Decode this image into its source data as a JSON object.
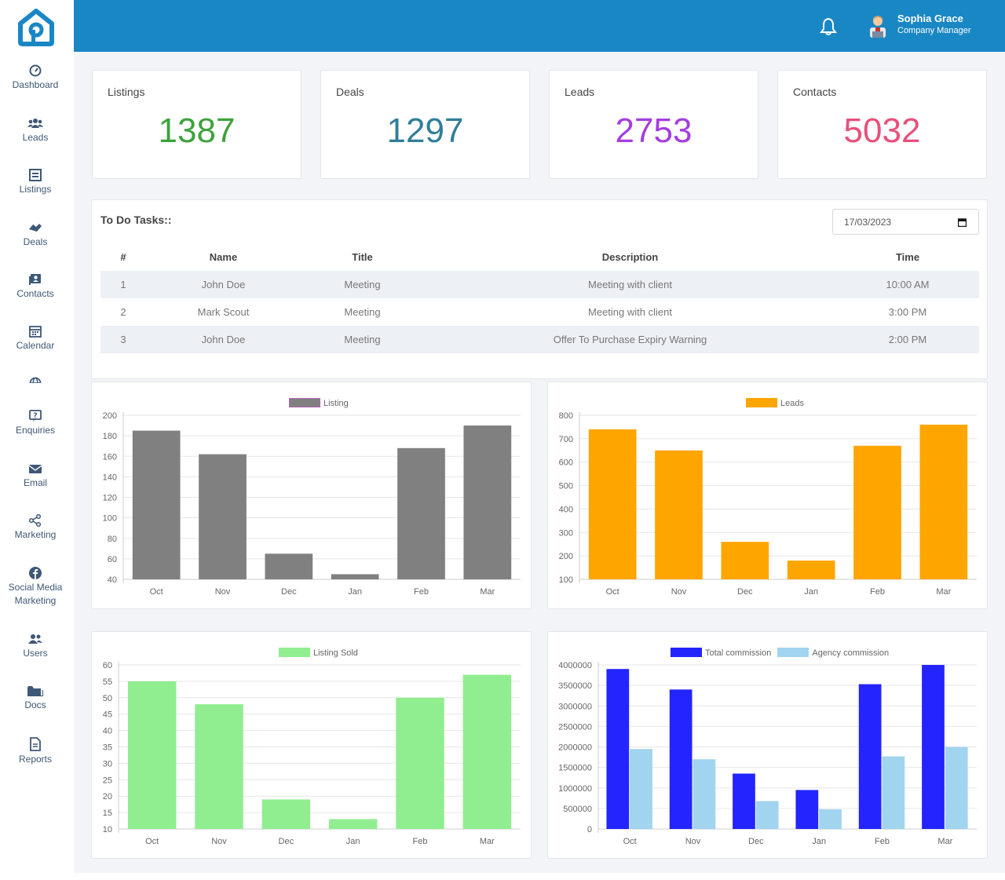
{
  "sidebar": {
    "items": [
      {
        "label": "Dashboard",
        "icon": "dashboard-icon"
      },
      {
        "label": "Leads",
        "icon": "users-icon"
      },
      {
        "label": "Listings",
        "icon": "list-icon"
      },
      {
        "label": "Deals",
        "icon": "handshake-icon"
      },
      {
        "label": "Contacts",
        "icon": "contact-card-icon"
      },
      {
        "label": "Calendar",
        "icon": "calendar-icon"
      },
      {
        "label": "Enquiries",
        "icon": "question-icon"
      },
      {
        "label": "Email",
        "icon": "mail-icon"
      },
      {
        "label": "Marketing",
        "icon": "share-icon"
      },
      {
        "label": "Social Media Marketing",
        "icon": "facebook-icon"
      },
      {
        "label": "Users",
        "icon": "user-group-icon"
      },
      {
        "label": "Docs",
        "icon": "folder-icon"
      },
      {
        "label": "Reports",
        "icon": "file-icon"
      }
    ]
  },
  "header": {
    "user_name": "Sophia Grace",
    "user_role": "Company Manager"
  },
  "stats": [
    {
      "title": "Listings",
      "value": "1387",
      "color": "#3ea23e"
    },
    {
      "title": "Deals",
      "value": "1297",
      "color": "#2f7e9a"
    },
    {
      "title": "Leads",
      "value": "2753",
      "color": "#a43ee0"
    },
    {
      "title": "Contacts",
      "value": "5032",
      "color": "#e8507a"
    }
  ],
  "tasks": {
    "title": "To Do Tasks::",
    "date": "17/03/2023",
    "columns": [
      "#",
      "Name",
      "Title",
      "Description",
      "Time"
    ],
    "rows": [
      [
        "1",
        "John Doe",
        "Meeting",
        "Meeting with client",
        "10:00 AM"
      ],
      [
        "2",
        "Mark Scout",
        "Meeting",
        "Meeting with client",
        "3:00 PM"
      ],
      [
        "3",
        "John Doe",
        "Meeting",
        "Offer To Purchase Expiry Warning",
        "2:00 PM"
      ]
    ]
  },
  "chart_data": [
    {
      "type": "bar",
      "title": "",
      "categories": [
        "Oct",
        "Nov",
        "Dec",
        "Jan",
        "Feb",
        "Mar"
      ],
      "series": [
        {
          "name": "Listing",
          "values": [
            185,
            162,
            65,
            45,
            168,
            190
          ],
          "color": "#808080"
        }
      ],
      "ylim": [
        40,
        200
      ],
      "yticks": [
        "40",
        "60",
        "80",
        "100",
        "120",
        "140",
        "160",
        "180",
        "200"
      ]
    },
    {
      "type": "bar",
      "title": "",
      "categories": [
        "Oct",
        "Nov",
        "Dec",
        "Jan",
        "Feb",
        "Mar"
      ],
      "series": [
        {
          "name": "Leads",
          "values": [
            740,
            650,
            260,
            180,
            670,
            760
          ],
          "color": "#ffa500"
        }
      ],
      "ylim": [
        100,
        800
      ],
      "yticks": [
        "100",
        "200",
        "300",
        "400",
        "500",
        "600",
        "700",
        "800"
      ]
    },
    {
      "type": "bar",
      "title": "",
      "categories": [
        "Oct",
        "Nov",
        "Dec",
        "Jan",
        "Feb",
        "Mar"
      ],
      "series": [
        {
          "name": "Listing Sold",
          "values": [
            55,
            48,
            19,
            13,
            50,
            57
          ],
          "color": "#90ee90"
        }
      ],
      "ylim": [
        10,
        60
      ],
      "yticks": [
        "10",
        "15",
        "20",
        "25",
        "30",
        "35",
        "40",
        "45",
        "50",
        "55",
        "60"
      ]
    },
    {
      "type": "bar",
      "title": "",
      "categories": [
        "Oct",
        "Nov",
        "Dec",
        "Jan",
        "Feb",
        "Mar"
      ],
      "series": [
        {
          "name": "Total commission",
          "values": [
            3900000,
            3400000,
            1350000,
            950000,
            3530000,
            4000000
          ],
          "color": "#2424ff"
        },
        {
          "name": "Agency commission",
          "values": [
            1950000,
            1700000,
            680000,
            480000,
            1770000,
            2000000
          ],
          "color": "#a0d4ef"
        }
      ],
      "ylim": [
        0,
        4000000
      ],
      "yticks": [
        "0",
        "500000",
        "1000000",
        "1500000",
        "2000000",
        "2500000",
        "3000000",
        "3500000",
        "4000000"
      ]
    }
  ]
}
